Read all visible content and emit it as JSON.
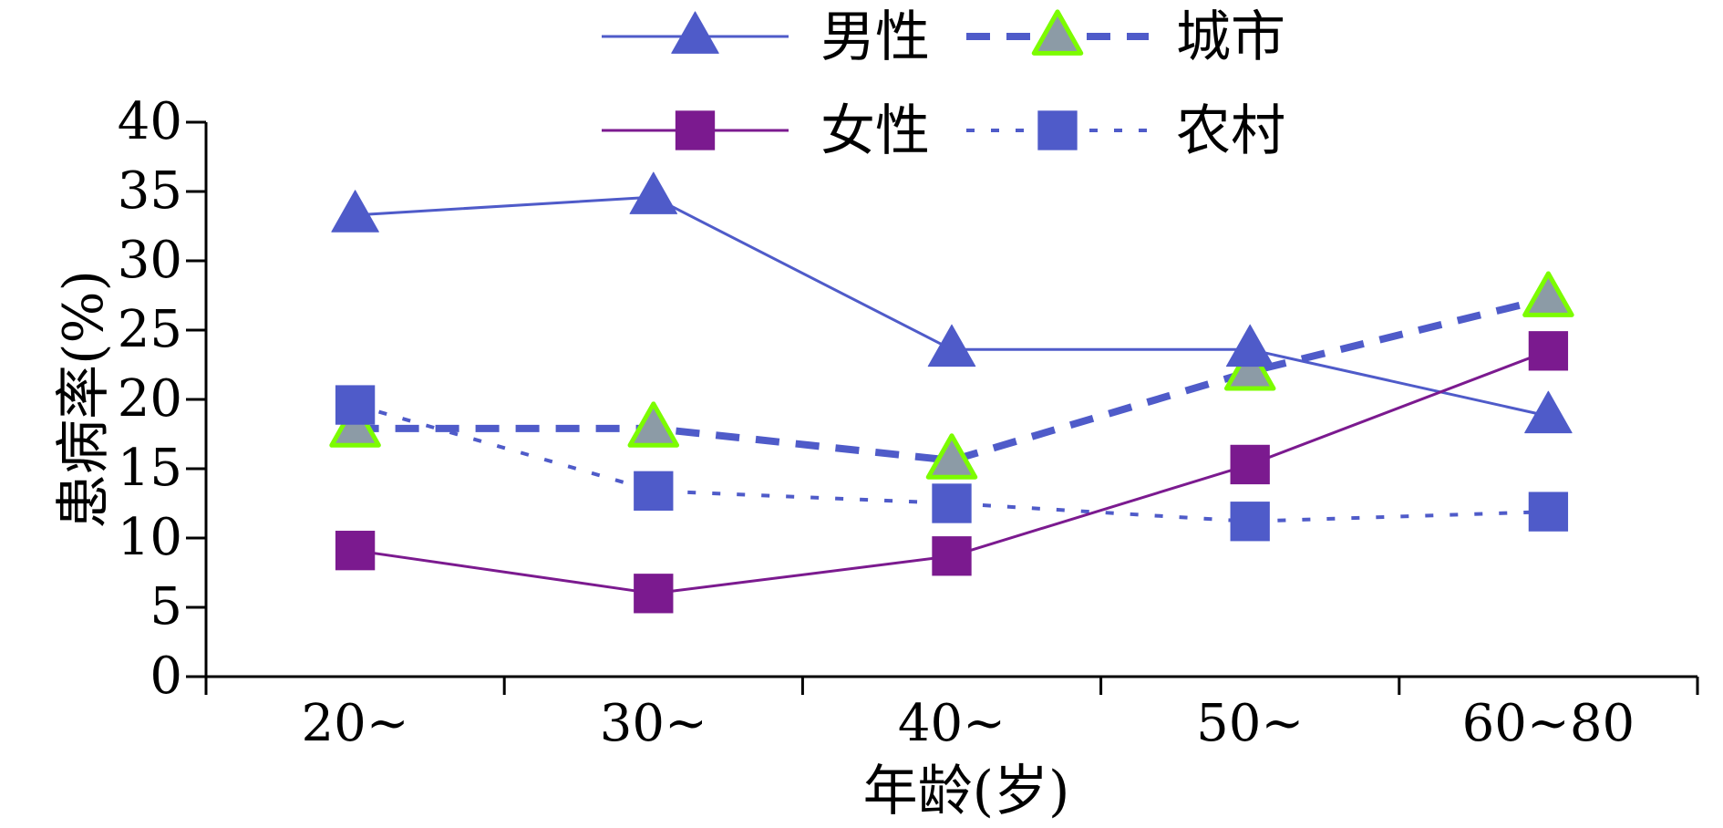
{
  "chart_data": {
    "type": "line",
    "categories": [
      "20~",
      "30~",
      "40~",
      "50~",
      "60~80"
    ],
    "xlabel": "年龄(岁)",
    "ylabel": "患病率(%)",
    "ylim": [
      0,
      40
    ],
    "yticks": [
      0,
      5,
      10,
      15,
      20,
      25,
      30,
      35,
      40
    ],
    "grid": false,
    "legend_position": "top",
    "series": [
      {
        "name": "男性",
        "values": [
          33.3,
          34.6,
          23.6,
          23.6,
          18.8
        ],
        "color": "#4F5BC9",
        "marker": "triangle",
        "marker_fill": "#4F5BC9",
        "marker_stroke": "#4F5BC9",
        "line_style": "solid"
      },
      {
        "name": "城市",
        "values": [
          17.9,
          17.9,
          15.6,
          22.0,
          27.3
        ],
        "color": "#4F5BC9",
        "marker": "triangle",
        "marker_fill": "#8C9BA6",
        "marker_stroke": "#7CFC00",
        "line_style": "dashed"
      },
      {
        "name": "女性",
        "values": [
          9.1,
          6.0,
          8.7,
          15.3,
          23.5
        ],
        "color": "#7B1A8F",
        "marker": "square",
        "marker_fill": "#7B1A8F",
        "marker_stroke": "#7B1A8F",
        "line_style": "solid"
      },
      {
        "name": "农村",
        "values": [
          19.6,
          13.4,
          12.5,
          11.2,
          11.9
        ],
        "color": "#4F5BC9",
        "marker": "square",
        "marker_fill": "#4F5BC9",
        "marker_stroke": "#4F5BC9",
        "line_style": "dotted"
      }
    ]
  }
}
